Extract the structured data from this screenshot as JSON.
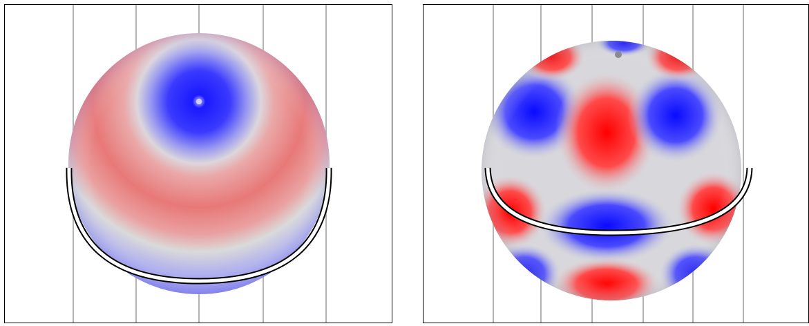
{
  "panels": [
    {
      "id": "left",
      "description_colors": {
        "positive": "#e85050",
        "negative": "#1818ff",
        "neutral": "#d8d8dc"
      }
    },
    {
      "id": "right",
      "description_colors": {
        "positive": "#ff1010",
        "negative": "#1010ff",
        "neutral": "#d8d8dc"
      }
    }
  ],
  "colors": {
    "frame": "#000000",
    "vertical_line": "#b4b4b4",
    "equator_ring_outer": "#000000",
    "equator_ring_inner": "#ffffff"
  }
}
